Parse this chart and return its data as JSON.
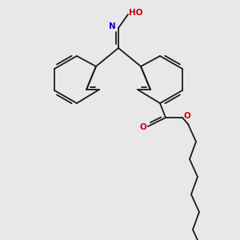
{
  "bg_color": "#e8e8e8",
  "bond_color": "#1a1a1a",
  "N_color": "#0000cc",
  "O_color": "#cc0000",
  "bond_lw": 1.3,
  "label_N": "N",
  "label_O_top": "O",
  "label_O_ester": "O",
  "label_O_carbonyl": "O"
}
